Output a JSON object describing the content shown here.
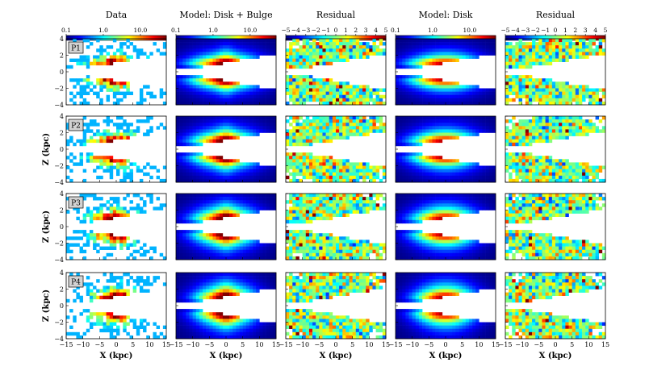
{
  "chart_data": {
    "type": "heatmap",
    "layout": "4 rows x 5 columns of binned maps",
    "column_titles": [
      "Data",
      "Model: Disk + Bulge",
      "Residual",
      "Model: Disk",
      "Residual"
    ],
    "colorbars": [
      {
        "kind": "log",
        "ticks": [
          "0.1",
          "1.0",
          "10.0"
        ],
        "range": [
          0.1,
          50
        ]
      },
      {
        "kind": "log",
        "ticks": [
          "0.1",
          "1.0",
          "10.0"
        ],
        "range": [
          0.1,
          50
        ]
      },
      {
        "kind": "linear",
        "ticks": [
          "−5",
          "−4",
          "−3",
          "−2",
          "−1",
          "0",
          "1",
          "2",
          "3",
          "4",
          "5"
        ],
        "range": [
          -5,
          5
        ]
      },
      {
        "kind": "log",
        "ticks": [
          "0.1",
          "1.0",
          "10.0"
        ],
        "range": [
          0.1,
          50
        ]
      },
      {
        "kind": "linear",
        "ticks": [
          "−5",
          "−4",
          "−3",
          "−2",
          "−1",
          "0",
          "1",
          "2",
          "3",
          "4",
          "5"
        ],
        "range": [
          -5,
          5
        ]
      }
    ],
    "row_labels": [
      "P1",
      "P2",
      "P3",
      "P4"
    ],
    "xlabel": "X (kpc)",
    "ylabel": "Z (kpc)",
    "xlim": [
      -15,
      15
    ],
    "ylim": [
      -4,
      4
    ],
    "x_ticks": [
      "−15",
      "−10",
      "−5",
      "0",
      "5",
      "10",
      "15"
    ],
    "y_ticks": [
      "4",
      "2",
      "0",
      "−2",
      "−4"
    ],
    "masked_band_halfwidth_kpc": 0.5,
    "masked_wedge_x_kpc": -15,
    "masked_wedge_halfheight_kpc": 2.2,
    "colormap": "jet"
  }
}
